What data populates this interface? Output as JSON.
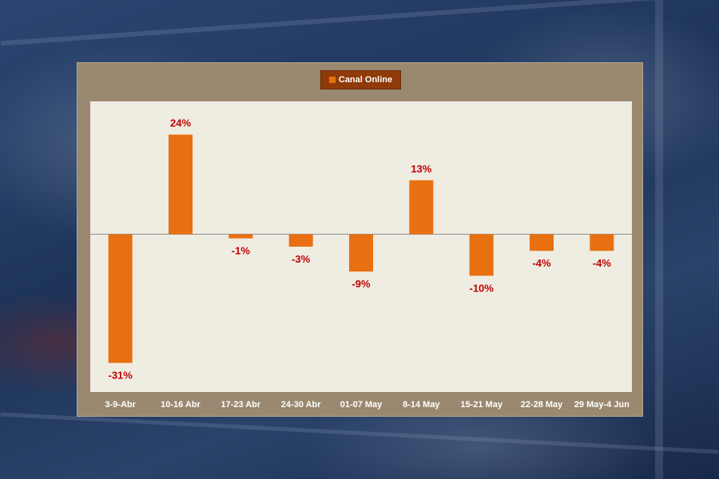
{
  "chart_data": {
    "type": "bar",
    "categories": [
      "3-9-Abr",
      "10-16 Abr",
      "17-23 Abr",
      "24-30 Abr",
      "01-07 May",
      "8-14 May",
      "15-21 May",
      "22-28 May",
      "29 May-4 Jun"
    ],
    "series": [
      {
        "name": "Canal Online",
        "values": [
          -31,
          24,
          -1,
          -3,
          -9,
          13,
          -10,
          -4,
          -4
        ],
        "labels": [
          "-31%",
          "24%",
          "-1%",
          "-3%",
          "-9%",
          "13%",
          "-10%",
          "-4%",
          "-4%"
        ]
      }
    ],
    "ylim": [
      -38,
      32
    ],
    "legend": "top-center",
    "grid": false
  },
  "colors": {
    "bar": "#e97010",
    "data_label": "#c00000",
    "axis_label": "#ffffff",
    "plot_background": "#efece2",
    "card_background": "#9b8870",
    "legend_background": "#8f3a08"
  }
}
